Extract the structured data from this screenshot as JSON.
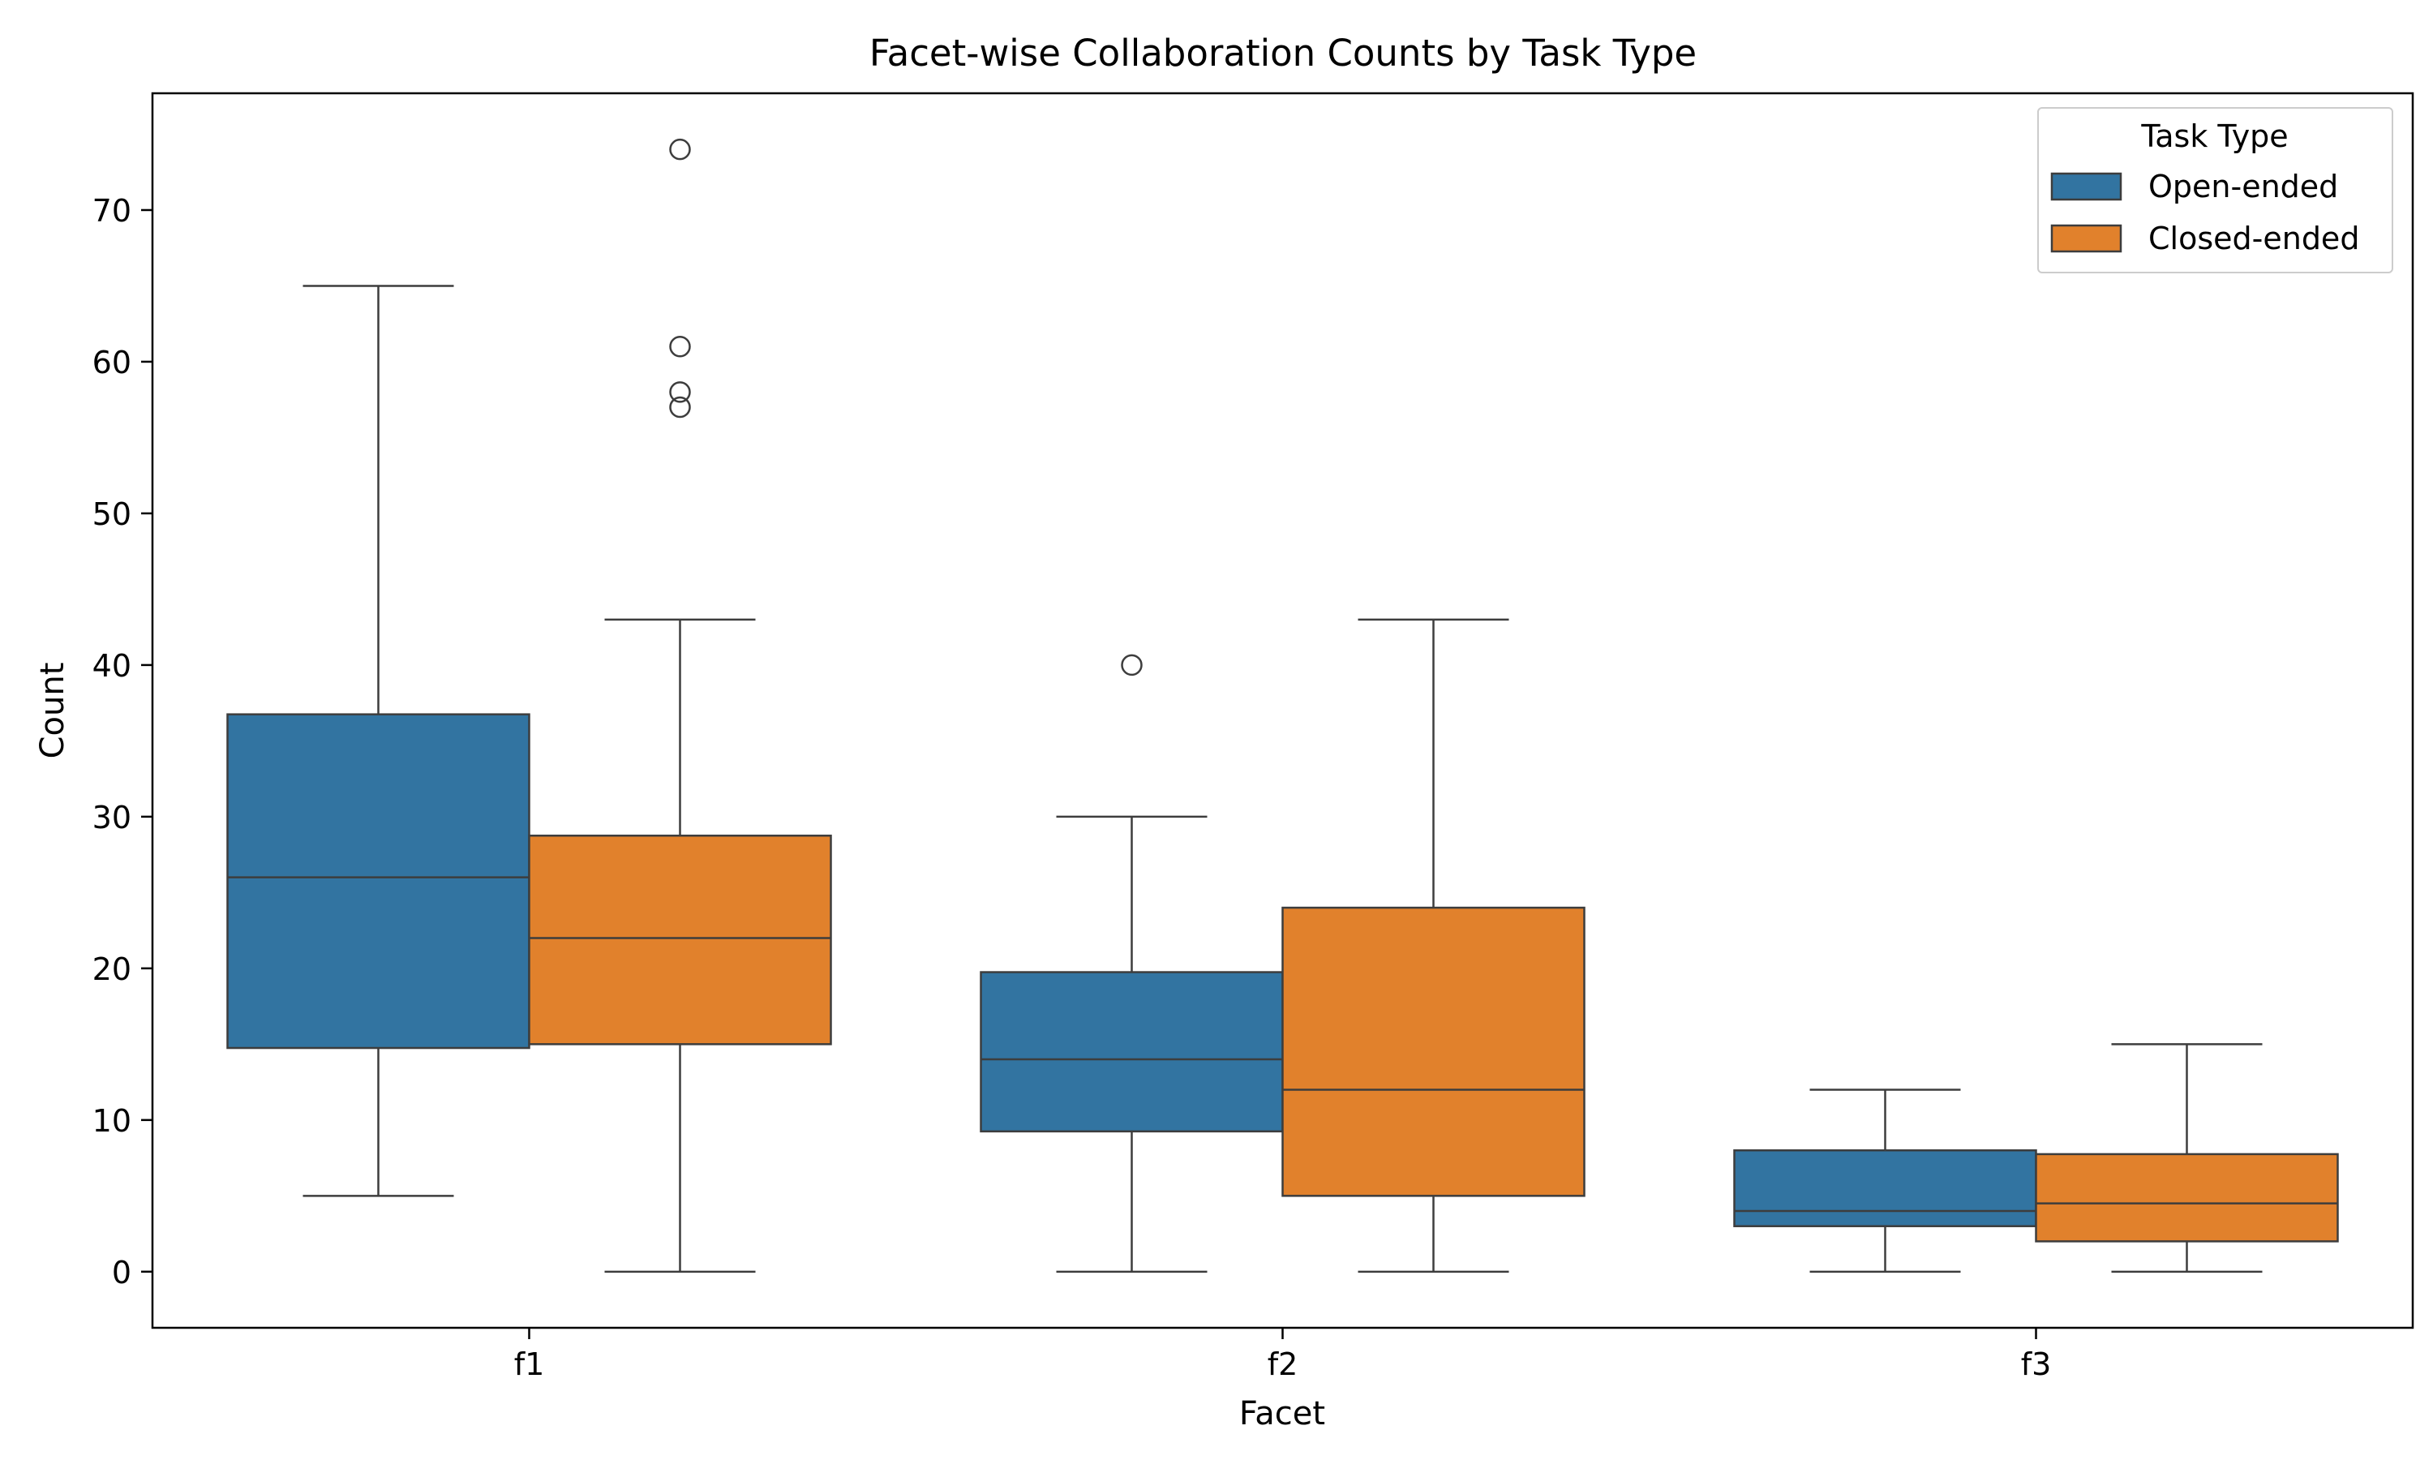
{
  "chart_data": {
    "type": "box",
    "title": "Facet-wise Collaboration Counts by Task Type",
    "xlabel": "Facet",
    "ylabel": "Count",
    "categories": [
      "f1",
      "f2",
      "f3"
    ],
    "ylim": [
      -3.7,
      77.7
    ],
    "yticks": [
      0,
      10,
      20,
      30,
      40,
      50,
      60,
      70
    ],
    "grid": false,
    "legend": {
      "title": "Task Type",
      "position": "top-right"
    },
    "series": [
      {
        "name": "Open-ended",
        "color": "#3274a1",
        "boxes": [
          {
            "category": "f1",
            "whisker_low": 5,
            "q1": 14.75,
            "median": 26,
            "q3": 36.75,
            "whisker_high": 65,
            "outliers": []
          },
          {
            "category": "f2",
            "whisker_low": 0,
            "q1": 9.25,
            "median": 14,
            "q3": 19.75,
            "whisker_high": 30,
            "outliers": [
              40
            ]
          },
          {
            "category": "f3",
            "whisker_low": 0,
            "q1": 3,
            "median": 4,
            "q3": 8,
            "whisker_high": 12,
            "outliers": []
          }
        ]
      },
      {
        "name": "Closed-ended",
        "color": "#e1812c",
        "boxes": [
          {
            "category": "f1",
            "whisker_low": 0,
            "q1": 15,
            "median": 22,
            "q3": 28.75,
            "whisker_high": 43,
            "outliers": [
              57,
              58,
              61,
              74
            ]
          },
          {
            "category": "f2",
            "whisker_low": 0,
            "q1": 5,
            "median": 12,
            "q3": 24,
            "whisker_high": 43,
            "outliers": []
          },
          {
            "category": "f3",
            "whisker_low": 0,
            "q1": 2,
            "median": 4.5,
            "q3": 7.75,
            "whisker_high": 15,
            "outliers": []
          }
        ]
      }
    ]
  }
}
